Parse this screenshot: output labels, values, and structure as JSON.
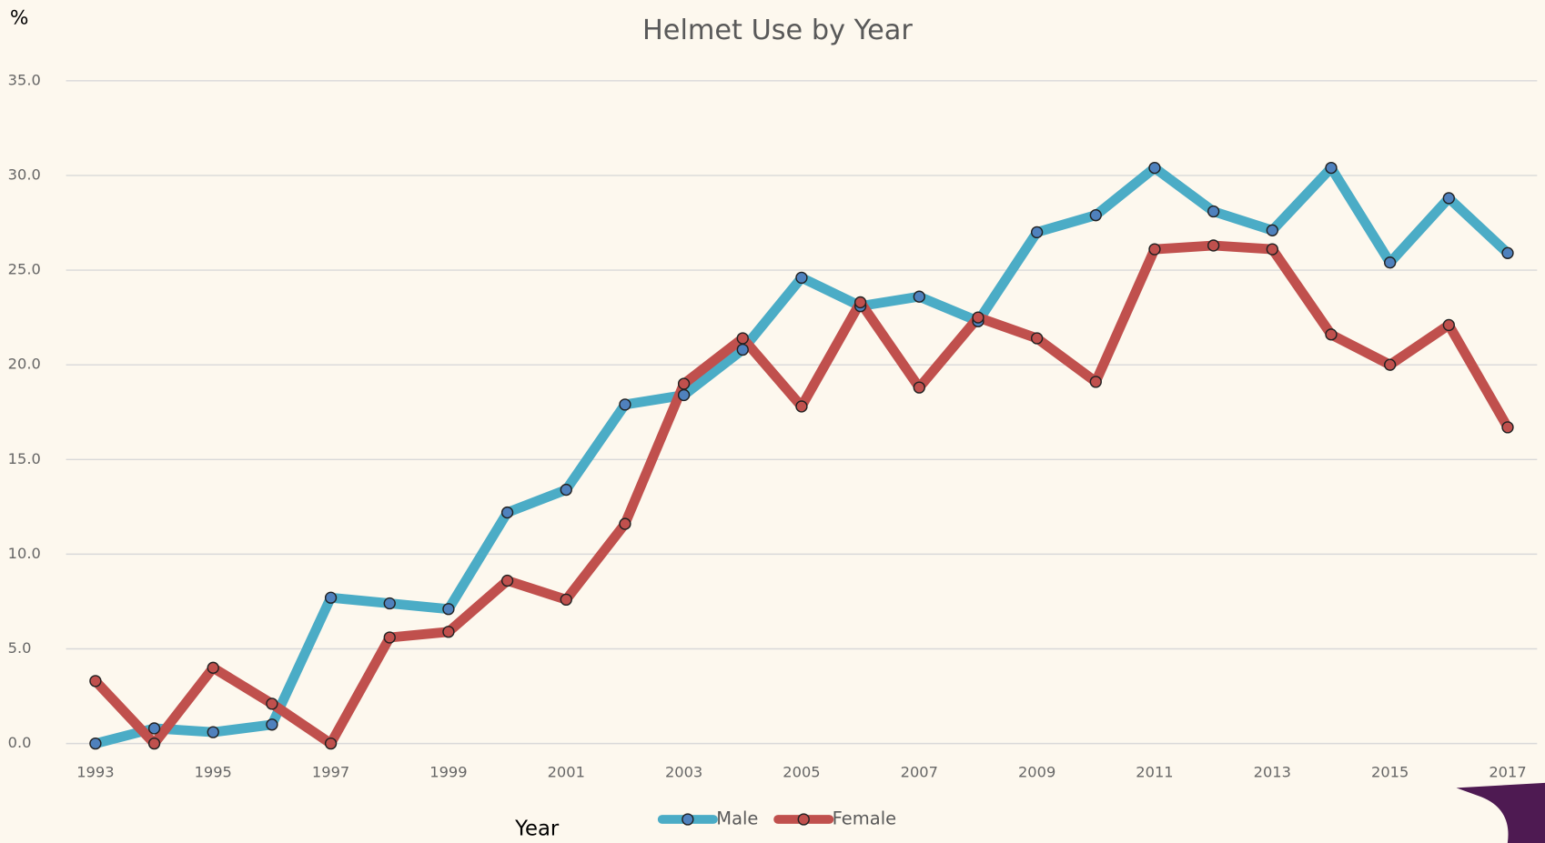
{
  "chart_data": {
    "type": "line",
    "title": "Helmet Use by Year",
    "ylabel": "%",
    "xlabel": "Year",
    "x": [
      1993,
      1994,
      1995,
      1996,
      1997,
      1998,
      1999,
      2000,
      2001,
      2002,
      2003,
      2004,
      2005,
      2006,
      2007,
      2008,
      2009,
      2010,
      2011,
      2012,
      2013,
      2014,
      2015,
      2016,
      2017
    ],
    "series": [
      {
        "name": "Male",
        "color": "#4bacc6",
        "marker_color": "#4f81bd",
        "values": [
          0,
          0.8,
          0.6,
          1.0,
          7.7,
          7.4,
          7.1,
          12.2,
          13.4,
          17.9,
          18.4,
          20.8,
          24.6,
          23.1,
          23.6,
          22.3,
          27.0,
          27.9,
          30.4,
          28.1,
          27.1,
          30.4,
          25.4,
          28.8,
          25.9
        ]
      },
      {
        "name": "Female",
        "color": "#c0504d",
        "marker_color": "#c0504d",
        "values": [
          3.3,
          0,
          4.0,
          2.1,
          0,
          5.6,
          5.9,
          8.6,
          7.6,
          11.6,
          19.0,
          21.4,
          17.8,
          23.3,
          18.8,
          22.5,
          21.4,
          19.1,
          26.1,
          26.3,
          26.1,
          21.6,
          20.0,
          22.1,
          16.7
        ]
      }
    ],
    "xlim": [
      1992.5,
      2017.5
    ],
    "xticks": [
      1993,
      1995,
      1997,
      1999,
      2001,
      2003,
      2005,
      2007,
      2009,
      2011,
      2013,
      2015,
      2017
    ],
    "ylim": [
      0,
      35
    ],
    "yticks": [
      {
        "value": 0,
        "label": "0.0"
      },
      {
        "value": 5,
        "label": "5.0"
      },
      {
        "value": 10,
        "label": "10.0"
      },
      {
        "value": 15,
        "label": "15.0"
      },
      {
        "value": 20,
        "label": "20.0"
      },
      {
        "value": 25,
        "label": "25.0"
      },
      {
        "value": 30,
        "label": "30.0"
      },
      {
        "value": 35,
        "label": "35.0"
      }
    ],
    "grid": true,
    "legend": "bottom"
  }
}
